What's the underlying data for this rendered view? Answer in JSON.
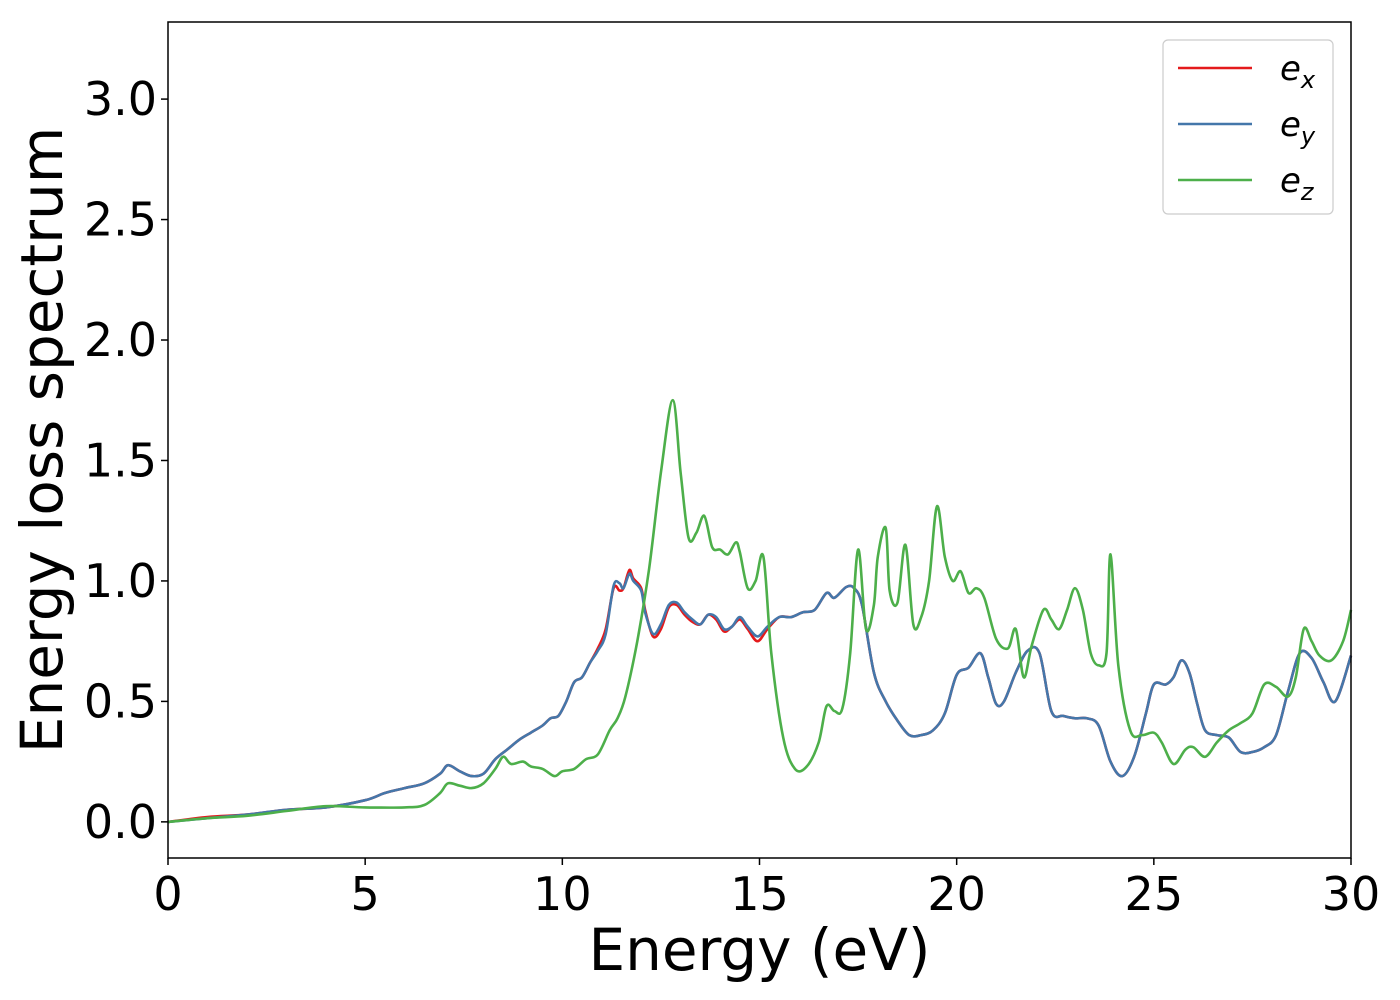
{
  "chart_data": {
    "type": "line",
    "title": "",
    "xlabel": "Energy (eV)",
    "ylabel": "Energy loss spectrum",
    "xlim": [
      0,
      30
    ],
    "ylim": [
      -0.15,
      3.32
    ],
    "xticks": [
      0,
      5,
      10,
      15,
      20,
      25,
      30
    ],
    "xtick_labels": [
      "0",
      "5",
      "10",
      "15",
      "20",
      "25",
      "30"
    ],
    "yticks": [
      0.0,
      0.5,
      1.0,
      1.5,
      2.0,
      2.5,
      3.0
    ],
    "ytick_labels": [
      "0.0",
      "0.5",
      "1.0",
      "1.5",
      "2.0",
      "2.5",
      "3.0"
    ],
    "grid": false,
    "legend_position": "top-right",
    "series": [
      {
        "name": "e_x",
        "label_base": "e",
        "label_sub": "x",
        "color": "#e41a1c",
        "x": [
          0,
          1,
          2,
          3,
          4,
          5,
          5.5,
          6,
          6.5,
          6.9,
          7.1,
          7.4,
          7.7,
          8.0,
          8.3,
          8.6,
          8.9,
          9.2,
          9.5,
          9.7,
          9.9,
          10.1,
          10.3,
          10.5,
          10.7,
          10.9,
          11.1,
          11.3,
          11.45,
          11.55,
          11.7,
          11.8,
          12.0,
          12.1,
          12.3,
          12.5,
          12.7,
          12.9,
          13.1,
          13.3,
          13.5,
          13.7,
          13.9,
          14.1,
          14.3,
          14.5,
          14.7,
          14.95,
          15.2,
          15.5,
          15.8,
          16.1,
          16.4,
          16.7,
          16.9,
          17.2,
          17.4,
          17.6,
          17.9,
          18.2,
          18.5,
          18.8,
          19.1,
          19.4,
          19.7,
          20.0,
          20.3,
          20.6,
          20.8,
          21.0,
          21.2,
          21.5,
          21.8,
          22.1,
          22.4,
          22.7,
          23.0,
          23.3,
          23.6,
          23.9,
          24.2,
          24.5,
          24.8,
          25.0,
          25.3,
          25.5,
          25.7,
          25.9,
          26.1,
          26.3,
          26.6,
          26.9,
          27.2,
          27.5,
          27.8,
          28.1,
          28.4,
          28.7,
          29.0,
          29.3,
          29.6,
          30.0
        ],
        "y": [
          0.0,
          0.02,
          0.03,
          0.05,
          0.06,
          0.09,
          0.12,
          0.14,
          0.16,
          0.2,
          0.235,
          0.21,
          0.19,
          0.2,
          0.26,
          0.3,
          0.34,
          0.37,
          0.4,
          0.43,
          0.44,
          0.5,
          0.58,
          0.6,
          0.66,
          0.72,
          0.8,
          0.97,
          0.96,
          0.97,
          1.045,
          1.01,
          0.97,
          0.88,
          0.77,
          0.8,
          0.89,
          0.9,
          0.86,
          0.83,
          0.82,
          0.86,
          0.84,
          0.79,
          0.81,
          0.84,
          0.8,
          0.75,
          0.8,
          0.85,
          0.85,
          0.87,
          0.88,
          0.95,
          0.93,
          0.975,
          0.97,
          0.9,
          0.62,
          0.5,
          0.42,
          0.36,
          0.36,
          0.38,
          0.45,
          0.61,
          0.64,
          0.7,
          0.6,
          0.49,
          0.5,
          0.62,
          0.71,
          0.7,
          0.46,
          0.44,
          0.43,
          0.43,
          0.4,
          0.25,
          0.19,
          0.27,
          0.45,
          0.57,
          0.57,
          0.6,
          0.67,
          0.62,
          0.49,
          0.38,
          0.36,
          0.35,
          0.29,
          0.29,
          0.31,
          0.36,
          0.54,
          0.7,
          0.68,
          0.58,
          0.5,
          0.69
        ]
      },
      {
        "name": "e_y",
        "label_base": "e",
        "label_sub": "y",
        "color": "#4477aa",
        "x": [
          0,
          1,
          2,
          3,
          4,
          5,
          5.5,
          6,
          6.5,
          6.9,
          7.1,
          7.4,
          7.7,
          8.0,
          8.3,
          8.6,
          8.9,
          9.2,
          9.5,
          9.7,
          9.9,
          10.1,
          10.3,
          10.5,
          10.7,
          10.9,
          11.1,
          11.3,
          11.45,
          11.55,
          11.7,
          11.8,
          12.0,
          12.1,
          12.3,
          12.5,
          12.7,
          12.9,
          13.1,
          13.3,
          13.5,
          13.7,
          13.9,
          14.1,
          14.3,
          14.5,
          14.7,
          14.95,
          15.2,
          15.5,
          15.8,
          16.1,
          16.4,
          16.7,
          16.9,
          17.2,
          17.4,
          17.6,
          17.9,
          18.2,
          18.5,
          18.8,
          19.1,
          19.4,
          19.7,
          20.0,
          20.3,
          20.6,
          20.8,
          21.0,
          21.2,
          21.5,
          21.8,
          22.1,
          22.4,
          22.7,
          23.0,
          23.3,
          23.6,
          23.9,
          24.2,
          24.5,
          24.8,
          25.0,
          25.3,
          25.5,
          25.7,
          25.9,
          26.1,
          26.3,
          26.6,
          26.9,
          27.2,
          27.5,
          27.8,
          28.1,
          28.4,
          28.7,
          29.0,
          29.3,
          29.6,
          30.0
        ],
        "y": [
          0.0,
          0.015,
          0.03,
          0.05,
          0.06,
          0.09,
          0.12,
          0.14,
          0.16,
          0.2,
          0.235,
          0.21,
          0.19,
          0.2,
          0.26,
          0.3,
          0.34,
          0.37,
          0.4,
          0.43,
          0.44,
          0.5,
          0.58,
          0.6,
          0.66,
          0.71,
          0.78,
          0.98,
          0.99,
          0.97,
          1.03,
          1.0,
          0.96,
          0.87,
          0.78,
          0.82,
          0.9,
          0.91,
          0.87,
          0.84,
          0.82,
          0.86,
          0.85,
          0.8,
          0.81,
          0.85,
          0.81,
          0.77,
          0.81,
          0.85,
          0.85,
          0.87,
          0.88,
          0.95,
          0.93,
          0.975,
          0.97,
          0.9,
          0.62,
          0.5,
          0.42,
          0.36,
          0.36,
          0.38,
          0.45,
          0.61,
          0.64,
          0.7,
          0.6,
          0.49,
          0.5,
          0.62,
          0.71,
          0.7,
          0.46,
          0.44,
          0.43,
          0.43,
          0.4,
          0.25,
          0.19,
          0.27,
          0.45,
          0.57,
          0.57,
          0.6,
          0.67,
          0.62,
          0.49,
          0.38,
          0.36,
          0.35,
          0.29,
          0.29,
          0.31,
          0.36,
          0.54,
          0.7,
          0.68,
          0.58,
          0.5,
          0.69
        ]
      },
      {
        "name": "e_z",
        "label_base": "e",
        "label_sub": "z",
        "color": "#4daf4a",
        "x": [
          0,
          1,
          2,
          3,
          4,
          5,
          6,
          6.5,
          6.9,
          7.1,
          7.4,
          7.7,
          8.0,
          8.3,
          8.5,
          8.7,
          9.0,
          9.2,
          9.5,
          9.8,
          10.0,
          10.3,
          10.6,
          10.9,
          11.2,
          11.4,
          11.6,
          11.9,
          12.2,
          12.5,
          12.8,
          13.0,
          13.2,
          13.4,
          13.6,
          13.8,
          14.0,
          14.2,
          14.4,
          14.5,
          14.7,
          14.9,
          15.1,
          15.3,
          15.6,
          15.9,
          16.2,
          16.5,
          16.7,
          16.9,
          17.1,
          17.3,
          17.5,
          17.7,
          17.9,
          18.0,
          18.2,
          18.3,
          18.5,
          18.7,
          18.9,
          19.1,
          19.3,
          19.5,
          19.7,
          19.9,
          20.1,
          20.3,
          20.5,
          20.7,
          21.0,
          21.3,
          21.5,
          21.7,
          21.9,
          22.2,
          22.4,
          22.6,
          22.8,
          23.0,
          23.2,
          23.4,
          23.6,
          23.8,
          23.9,
          24.1,
          24.4,
          24.7,
          25.0,
          25.2,
          25.5,
          25.8,
          26.0,
          26.3,
          26.6,
          26.9,
          27.2,
          27.5,
          27.8,
          28.1,
          28.4,
          28.6,
          28.8,
          29.0,
          29.2,
          29.5,
          29.8,
          30.0
        ],
        "y": [
          0.0,
          0.015,
          0.025,
          0.045,
          0.065,
          0.06,
          0.06,
          0.07,
          0.12,
          0.16,
          0.15,
          0.14,
          0.16,
          0.22,
          0.27,
          0.24,
          0.25,
          0.23,
          0.22,
          0.19,
          0.21,
          0.22,
          0.26,
          0.28,
          0.38,
          0.43,
          0.52,
          0.75,
          1.05,
          1.45,
          1.75,
          1.45,
          1.18,
          1.2,
          1.27,
          1.14,
          1.13,
          1.11,
          1.16,
          1.12,
          0.97,
          1.0,
          1.1,
          0.7,
          0.35,
          0.22,
          0.23,
          0.33,
          0.48,
          0.46,
          0.47,
          0.7,
          1.13,
          0.8,
          0.9,
          1.1,
          1.22,
          0.96,
          0.91,
          1.15,
          0.82,
          0.85,
          1.0,
          1.31,
          1.1,
          1.0,
          1.04,
          0.95,
          0.97,
          0.93,
          0.76,
          0.72,
          0.8,
          0.6,
          0.73,
          0.88,
          0.84,
          0.8,
          0.88,
          0.97,
          0.88,
          0.7,
          0.65,
          0.7,
          1.11,
          0.65,
          0.38,
          0.36,
          0.37,
          0.33,
          0.24,
          0.3,
          0.31,
          0.27,
          0.33,
          0.38,
          0.41,
          0.45,
          0.57,
          0.56,
          0.52,
          0.6,
          0.8,
          0.75,
          0.69,
          0.67,
          0.75,
          0.88
        ]
      }
    ]
  }
}
